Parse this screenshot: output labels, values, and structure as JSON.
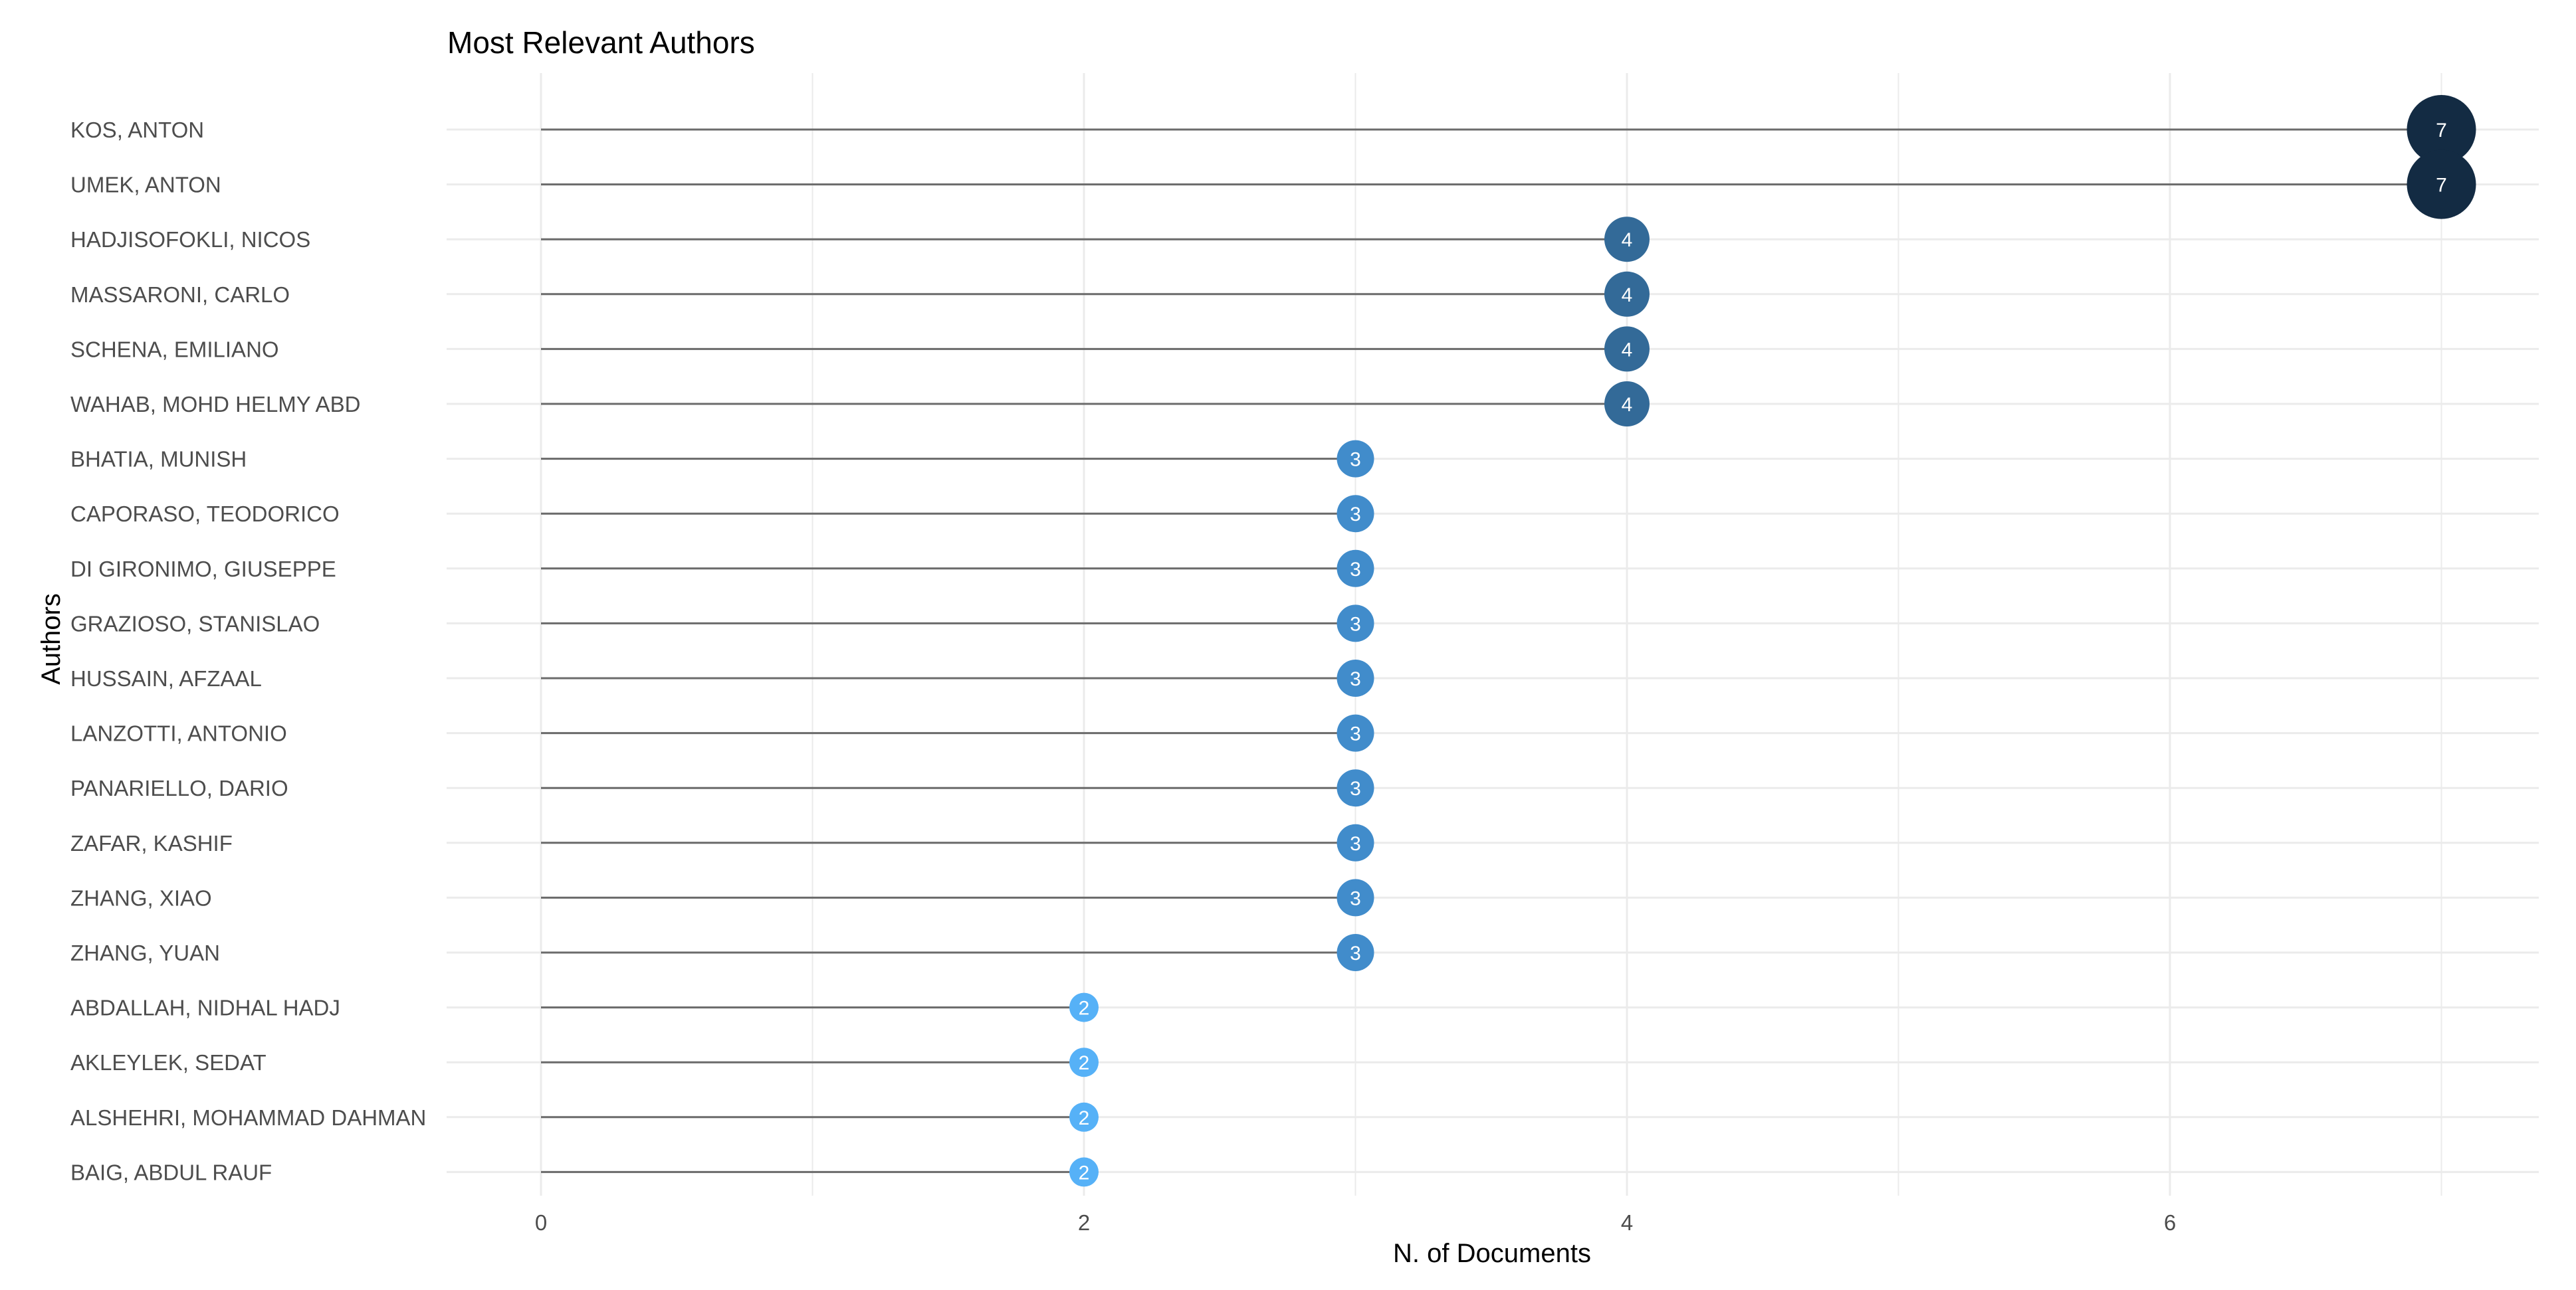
{
  "chart_data": {
    "type": "lollipop",
    "title": "Most Relevant Authors",
    "xlabel": "N. of Documents",
    "ylabel": "Authors",
    "xlim": [
      -0.35,
      7.35
    ],
    "xticks": [
      0,
      2,
      4,
      6
    ],
    "grid": "on",
    "legend": "none",
    "categories": [
      "KOS, ANTON",
      "UMEK, ANTON",
      "HADJISOFOKLI, NICOS",
      "MASSARONI, CARLO",
      "SCHENA, EMILIANO",
      "WAHAB, MOHD HELMY ABD",
      "BHATIA, MUNISH",
      "CAPORASO, TEODORICO",
      "DI GIRONIMO, GIUSEPPE",
      "GRAZIOSO, STANISLAO",
      "HUSSAIN, AFZAAL",
      "LANZOTTI, ANTONIO",
      "PANARIELLO, DARIO",
      "ZAFAR, KASHIF",
      "ZHANG, XIAO",
      "ZHANG, YUAN",
      "ABDALLAH, NIDHAL HADJ",
      "AKLEYLEK, SEDAT",
      "ALSHEHRI, MOHAMMAD DAHMAN",
      "BAIG, ABDUL RAUF"
    ],
    "values": [
      7,
      7,
      4,
      4,
      4,
      4,
      3,
      3,
      3,
      3,
      3,
      3,
      3,
      3,
      3,
      3,
      2,
      2,
      2,
      2
    ],
    "colors": {
      "7": "#132b43",
      "4": "#336a98",
      "3": "#418ccb",
      "2": "#56b1f7",
      "stem": "#6b6b6b",
      "grid": "#ebebeb"
    }
  }
}
